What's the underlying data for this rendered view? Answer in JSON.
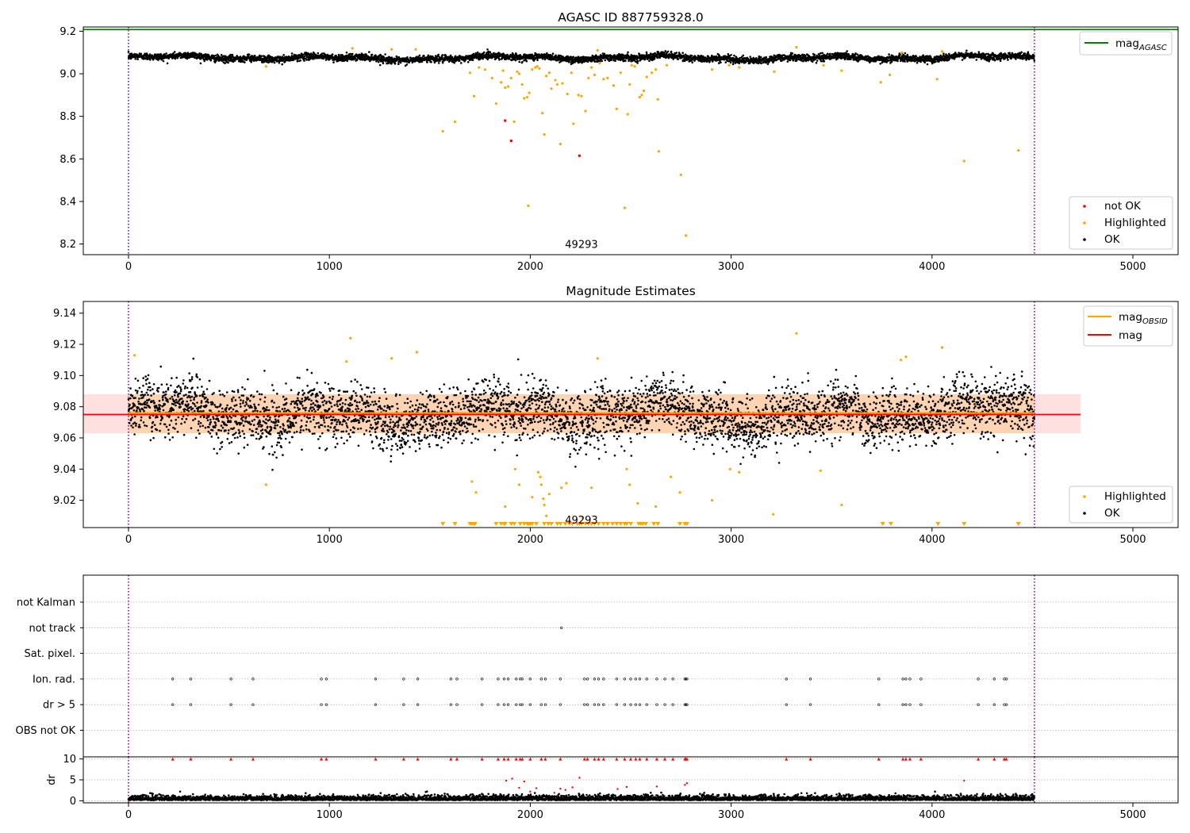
{
  "chart_data": [
    {
      "name": "agasc-panel",
      "type": "scatter",
      "title": "AGASC ID 887759328.0",
      "xlim": [
        -225,
        5225
      ],
      "ylim": [
        8.15,
        9.22
      ],
      "xticks": [
        0,
        1000,
        2000,
        3000,
        4000,
        5000
      ],
      "yticks": [
        8.2,
        8.4,
        8.6,
        8.8,
        9.0,
        9.2
      ],
      "ytick_labels": [
        "8.2",
        "8.4",
        "8.6",
        "8.8",
        "9.0",
        "9.2"
      ],
      "obs_boundaries": [
        0,
        4510
      ],
      "annotation": {
        "text": "49293",
        "x": 2255,
        "y": 8.2
      },
      "agasc_mag": 9.208,
      "ok_band": {
        "n": 4510,
        "center": 9.075,
        "amplitude": 0.012,
        "noise": 0.008
      },
      "highlighted": [
        [
          685,
          9.035
        ],
        [
          1115,
          9.12
        ],
        [
          1310,
          9.115
        ],
        [
          1430,
          9.115
        ],
        [
          1565,
          8.73
        ],
        [
          1625,
          8.775
        ],
        [
          1700,
          9.005
        ],
        [
          1720,
          8.895
        ],
        [
          1745,
          9.03
        ],
        [
          1775,
          9.02
        ],
        [
          1810,
          8.98
        ],
        [
          1830,
          8.86
        ],
        [
          1855,
          8.96
        ],
        [
          1865,
          9.015
        ],
        [
          1875,
          8.935
        ],
        [
          1890,
          8.94
        ],
        [
          1905,
          8.98
        ],
        [
          1920,
          8.775
        ],
        [
          1935,
          9.01
        ],
        [
          1945,
          9.0
        ],
        [
          1960,
          8.95
        ],
        [
          1970,
          8.885
        ],
        [
          1985,
          8.89
        ],
        [
          1990,
          8.38
        ],
        [
          1995,
          8.91
        ],
        [
          2010,
          9.02
        ],
        [
          2025,
          9.03
        ],
        [
          2035,
          9.035
        ],
        [
          2045,
          9.025
        ],
        [
          2060,
          8.815
        ],
        [
          2070,
          8.715
        ],
        [
          2080,
          8.99
        ],
        [
          2095,
          9.005
        ],
        [
          2105,
          8.93
        ],
        [
          2125,
          8.97
        ],
        [
          2135,
          8.95
        ],
        [
          2150,
          8.67
        ],
        [
          2160,
          8.955
        ],
        [
          2185,
          8.905
        ],
        [
          2205,
          9.005
        ],
        [
          2215,
          8.765
        ],
        [
          2240,
          8.9
        ],
        [
          2255,
          8.895
        ],
        [
          2275,
          8.825
        ],
        [
          2290,
          8.98
        ],
        [
          2305,
          9.03
        ],
        [
          2320,
          8.995
        ],
        [
          2335,
          9.11
        ],
        [
          2345,
          9.05
        ],
        [
          2365,
          8.975
        ],
        [
          2385,
          8.98
        ],
        [
          2415,
          8.945
        ],
        [
          2430,
          8.835
        ],
        [
          2450,
          9.005
        ],
        [
          2470,
          8.37
        ],
        [
          2485,
          8.81
        ],
        [
          2495,
          8.95
        ],
        [
          2505,
          9.04
        ],
        [
          2520,
          9.035
        ],
        [
          2545,
          8.89
        ],
        [
          2555,
          8.9
        ],
        [
          2565,
          8.92
        ],
        [
          2580,
          8.985
        ],
        [
          2605,
          9.005
        ],
        [
          2625,
          9.02
        ],
        [
          2635,
          8.88
        ],
        [
          2640,
          8.635
        ],
        [
          2680,
          9.04
        ],
        [
          2750,
          8.525
        ],
        [
          2775,
          8.24
        ],
        [
          2905,
          9.02
        ],
        [
          2990,
          9.04
        ],
        [
          3040,
          9.03
        ],
        [
          3215,
          9.01
        ],
        [
          3325,
          9.125
        ],
        [
          3460,
          9.04
        ],
        [
          3550,
          9.015
        ],
        [
          3745,
          8.96
        ],
        [
          3790,
          8.995
        ],
        [
          3850,
          9.1
        ],
        [
          4025,
          8.975
        ],
        [
          4050,
          9.105
        ],
        [
          4160,
          8.59
        ],
        [
          4430,
          8.64
        ]
      ],
      "not_ok": [
        [
          1875,
          8.78
        ],
        [
          1905,
          8.685
        ],
        [
          2245,
          8.615
        ]
      ],
      "legends": {
        "line": {
          "label_main": "mag",
          "label_sub": "AGASC",
          "color": "#008000"
        },
        "points": [
          {
            "label": "not OK",
            "color": "#ff0000"
          },
          {
            "label": "Highlighted",
            "color": "#ffa500"
          },
          {
            "label": "OK",
            "color": "#000000"
          }
        ]
      }
    },
    {
      "name": "estimates-panel",
      "type": "scatter",
      "title": "Magnitude Estimates",
      "xlim": [
        -225,
        5225
      ],
      "ylim": [
        9.0025,
        9.1475
      ],
      "xticks": [
        0,
        1000,
        2000,
        3000,
        4000,
        5000
      ],
      "yticks": [
        9.02,
        9.04,
        9.06,
        9.08,
        9.1,
        9.12,
        9.14
      ],
      "ytick_labels": [
        "9.02",
        "9.04",
        "9.06",
        "9.08",
        "9.10",
        "9.12",
        "9.14"
      ],
      "obs_boundaries": [
        0,
        4510
      ],
      "annotation": {
        "text": "49293",
        "x": 2255,
        "y": 9.0075
      },
      "mag": 9.075,
      "mag_band": [
        9.063,
        9.088
      ],
      "mag_line_xrange": [
        -225,
        4740
      ],
      "mag_obsid": 9.076,
      "mag_obsid_xrange": [
        0,
        4510
      ],
      "ok_band": {
        "n": 4510,
        "center": 9.075,
        "amplitude": 0.008,
        "noise": 0.009
      },
      "highlighted": [
        [
          30,
          9.113
        ],
        [
          685,
          9.03
        ],
        [
          1085,
          9.109
        ],
        [
          1105,
          9.124
        ],
        [
          1310,
          9.111
        ],
        [
          1435,
          9.115
        ],
        [
          1710,
          9.032
        ],
        [
          1730,
          9.025
        ],
        [
          1875,
          9.016
        ],
        [
          1925,
          9.04
        ],
        [
          1945,
          9.03
        ],
        [
          2010,
          9.022
        ],
        [
          2040,
          9.038
        ],
        [
          2050,
          9.035
        ],
        [
          2055,
          9.03
        ],
        [
          2065,
          9.021
        ],
        [
          2070,
          9.017
        ],
        [
          2080,
          9.01
        ],
        [
          2095,
          9.024
        ],
        [
          2155,
          9.028
        ],
        [
          2180,
          9.031
        ],
        [
          2260,
          9.009
        ],
        [
          2305,
          9.028
        ],
        [
          2335,
          9.111
        ],
        [
          2480,
          9.04
        ],
        [
          2495,
          9.03
        ],
        [
          2535,
          9.018
        ],
        [
          2625,
          9.016
        ],
        [
          2700,
          9.035
        ],
        [
          2745,
          9.025
        ],
        [
          2775,
          9.005
        ],
        [
          2905,
          9.02
        ],
        [
          2995,
          9.04
        ],
        [
          3040,
          9.038
        ],
        [
          3210,
          9.011
        ],
        [
          3325,
          9.127
        ],
        [
          3445,
          9.039
        ],
        [
          3550,
          9.017
        ],
        [
          3845,
          9.11
        ],
        [
          3870,
          9.112
        ],
        [
          4050,
          9.118
        ]
      ],
      "clipped_x": [
        1565,
        1625,
        1700,
        1710,
        1720,
        1725,
        1830,
        1855,
        1870,
        1875,
        1905,
        1920,
        1950,
        1970,
        1985,
        1990,
        1995,
        2000,
        2010,
        2030,
        2070,
        2090,
        2105,
        2135,
        2150,
        2175,
        2195,
        2210,
        2235,
        2245,
        2255,
        2275,
        2290,
        2305,
        2320,
        2340,
        2365,
        2385,
        2410,
        2430,
        2450,
        2470,
        2480,
        2500,
        2540,
        2550,
        2560,
        2575,
        2615,
        2635,
        2745,
        2770,
        2780,
        3755,
        3795,
        4030,
        4160,
        4430
      ],
      "legends": {
        "lines": [
          {
            "label_main": "mag",
            "label_sub": "OBSID",
            "color": "#ffa500"
          },
          {
            "label_main": "mag",
            "label_sub": "",
            "color": "#ff0000"
          }
        ],
        "points": [
          {
            "label": "Highlighted",
            "color": "#ffa500"
          },
          {
            "label": "OK",
            "color": "#000000"
          }
        ]
      }
    },
    {
      "name": "flags-panel",
      "type": "scatter",
      "categories": [
        "not Kalman",
        "not track",
        "Sat. pixel.",
        "Ion. rad.",
        "dr > 5",
        "OBS not OK"
      ],
      "flag_points": {
        "not track": [
          2155
        ],
        "ion_rad_and_dr5": [
          220,
          310,
          510,
          620,
          960,
          985,
          1230,
          1370,
          1440,
          1605,
          1635,
          1760,
          1840,
          1870,
          1890,
          1930,
          1950,
          1960,
          2000,
          2055,
          2075,
          2150,
          2270,
          2285,
          2320,
          2340,
          2365,
          2430,
          2470,
          2500,
          2525,
          2545,
          2580,
          2630,
          2670,
          2710,
          2770,
          2775,
          2780,
          3275,
          3395,
          3735,
          3855,
          3870,
          3890,
          3945,
          4230,
          4310,
          4360,
          4370
        ]
      }
    },
    {
      "name": "dr-panel",
      "type": "scatter",
      "xlim": [
        -225,
        5225
      ],
      "ylim": [
        -0.5,
        10.5
      ],
      "xticks": [
        0,
        1000,
        2000,
        3000,
        4000,
        5000
      ],
      "yticks": [
        0,
        5,
        10
      ],
      "ytick_labels": [
        "0",
        "5",
        "10"
      ],
      "ylabel": "dr",
      "obs_boundaries": [
        0,
        4510
      ],
      "red_points": [
        [
          1880,
          4.8
        ],
        [
          1910,
          5.3
        ],
        [
          1945,
          3.1
        ],
        [
          1970,
          4.6
        ],
        [
          2000,
          2.2
        ],
        [
          2030,
          3.0
        ],
        [
          2120,
          1.9
        ],
        [
          2150,
          2.9
        ],
        [
          2175,
          2.6
        ],
        [
          2210,
          3.2
        ],
        [
          2245,
          5.5
        ],
        [
          2435,
          2.8
        ],
        [
          2480,
          3.3
        ],
        [
          2630,
          3.4
        ],
        [
          2770,
          3.8
        ],
        [
          2780,
          4.2
        ],
        [
          4160,
          4.8
        ]
      ],
      "clipped_x": [
        220,
        310,
        510,
        620,
        960,
        985,
        1230,
        1370,
        1440,
        1605,
        1635,
        1760,
        1840,
        1870,
        1890,
        1930,
        1950,
        1960,
        2000,
        2055,
        2075,
        2150,
        2270,
        2285,
        2320,
        2340,
        2365,
        2430,
        2470,
        2500,
        2525,
        2545,
        2580,
        2630,
        2670,
        2710,
        2770,
        2775,
        2780,
        3275,
        3395,
        3735,
        3855,
        3870,
        3890,
        3945,
        4230,
        4310,
        4360,
        4370
      ]
    }
  ]
}
